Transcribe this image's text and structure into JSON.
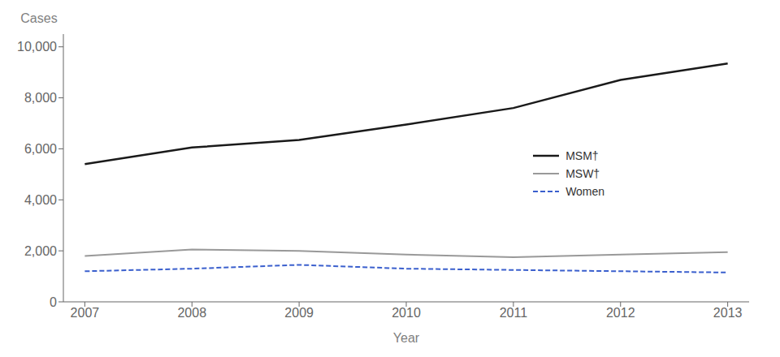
{
  "chart_data": {
    "type": "line",
    "xlabel": "Year",
    "ylabel": "Cases",
    "x": [
      2007,
      2008,
      2009,
      2010,
      2011,
      2012,
      2013
    ],
    "series": [
      {
        "name": "MSM†",
        "color": "#1a1a1a",
        "line_style": "solid",
        "values": [
          5400,
          6050,
          6350,
          6950,
          7600,
          8700,
          9350
        ]
      },
      {
        "name": "MSW†",
        "color": "#999999",
        "line_style": "solid",
        "values": [
          1800,
          2050,
          2000,
          1850,
          1750,
          1850,
          1950
        ]
      },
      {
        "name": "Women",
        "color": "#3a5fcd",
        "line_style": "dashed",
        "values": [
          1200,
          1300,
          1450,
          1300,
          1250,
          1200,
          1150
        ]
      }
    ],
    "xlim": [
      2006.8,
      2013.2
    ],
    "xticks": [
      2007,
      2008,
      2009,
      2010,
      2011,
      2012,
      2013
    ],
    "ylim": [
      0,
      10500
    ],
    "yticks": [
      0,
      {
        "value": 2000,
        "label": "2,000"
      },
      {
        "value": 4000,
        "label": "4,000"
      },
      {
        "value": 6000,
        "label": "6,000"
      },
      {
        "value": 8000,
        "label": "8,000"
      },
      {
        "value": 10000,
        "label": "10,000"
      }
    ],
    "grid": false,
    "legend": "right"
  }
}
